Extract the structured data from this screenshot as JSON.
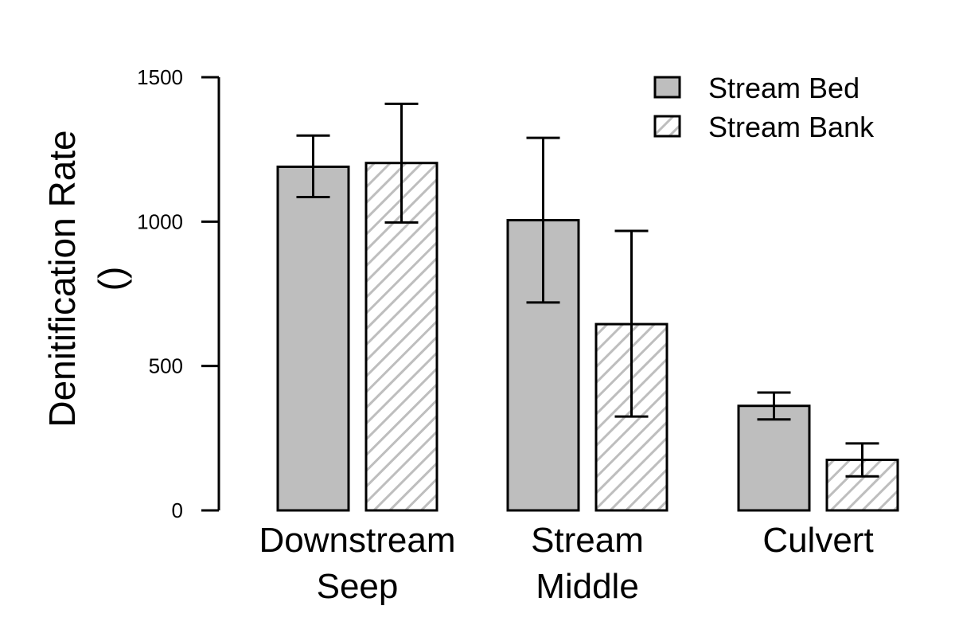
{
  "chart_data": {
    "type": "bar",
    "ylabel_line1": "Denitification Rate",
    "ylabel_line2": "()",
    "categories": [
      {
        "line1": "Downstream",
        "line2": "Seep"
      },
      {
        "line1": "Stream",
        "line2": "Middle"
      },
      {
        "line1": "Culvert",
        "line2": ""
      }
    ],
    "series": [
      {
        "name": "Stream Bed",
        "values": [
          1190,
          1005,
          362
        ],
        "error_low": [
          1085,
          720,
          315
        ],
        "error_high": [
          1298,
          1290,
          408
        ]
      },
      {
        "name": "Stream Bank",
        "values": [
          1203,
          645,
          175
        ],
        "error_low": [
          997,
          325,
          118
        ],
        "error_high": [
          1408,
          968,
          232
        ]
      }
    ],
    "ylim": [
      0,
      1500
    ],
    "yticks": [
      "0",
      "500",
      "1000",
      "1500"
    ],
    "legend_position": "top-right",
    "colors": {
      "bed_fill": "#bebebe",
      "bank_hatch": "#bebebe",
      "stroke": "#000000"
    }
  }
}
